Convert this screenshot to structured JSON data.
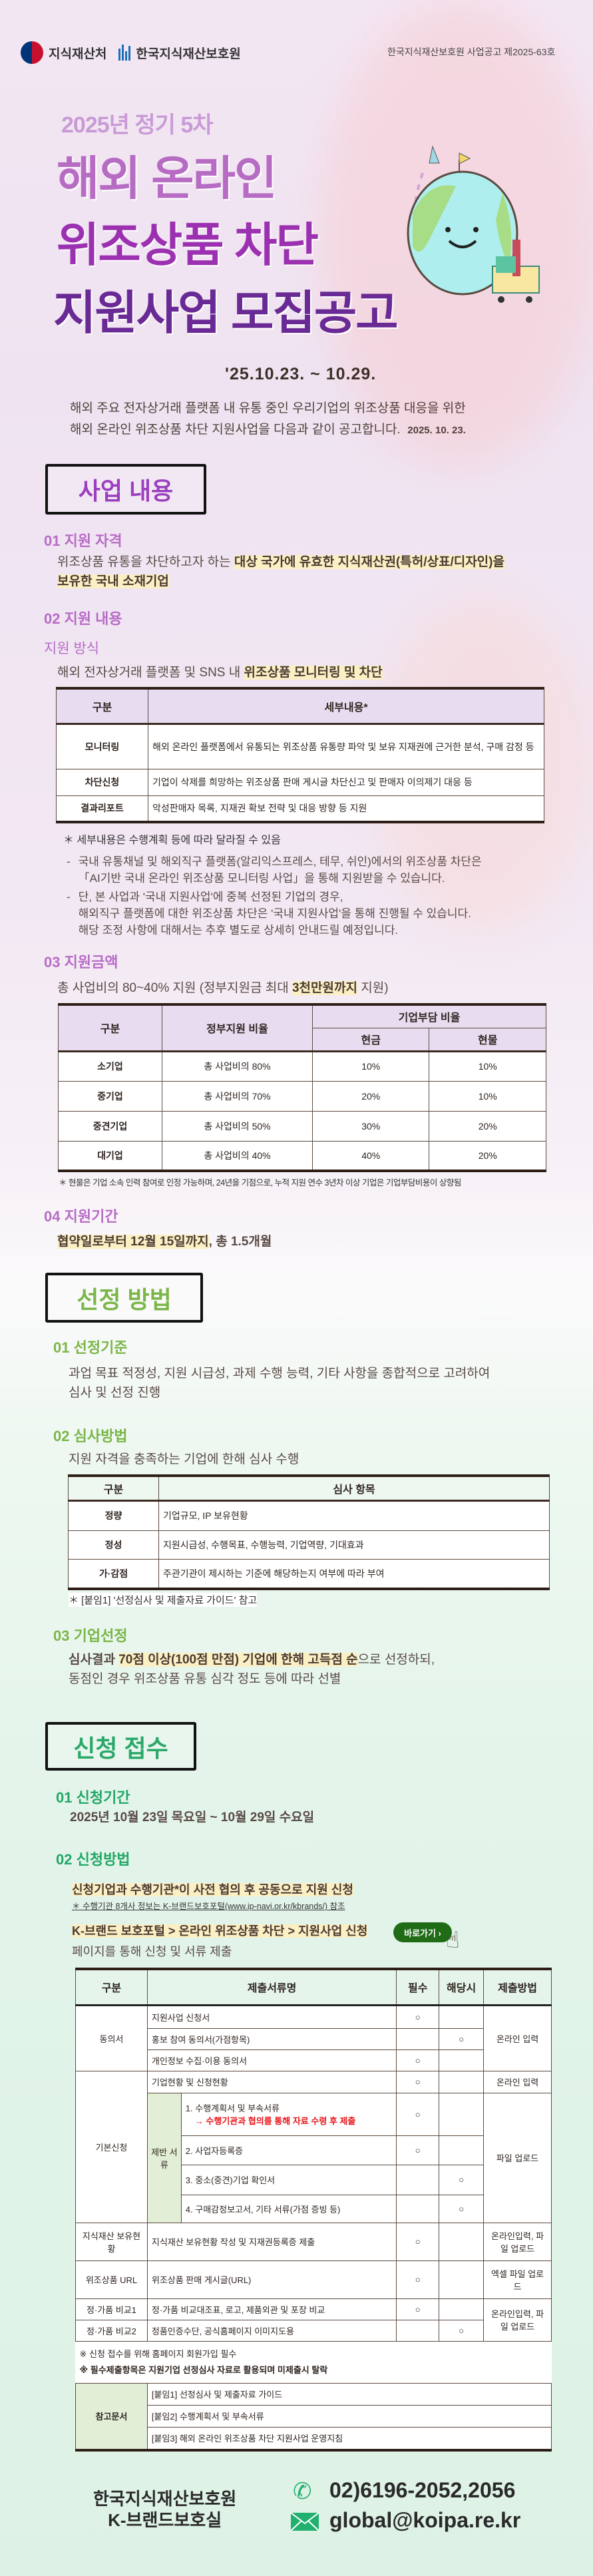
{
  "header": {
    "ministry": "지식재산처",
    "agency": "한국지식재산보호원",
    "notice_no": "한국지식재산보호원 사업공고 제2025-63호"
  },
  "hero": {
    "round": "2025년 정기 5차",
    "title_lines": [
      "해외 온라인",
      "위조상품 차단",
      "지원사업 모집공고"
    ],
    "period": "'25.10.23. ~ 10.29.",
    "intro_lines": [
      "해외 주요 전자상거래 플랫폼 내 유통 중인 우리기업의 위조상품 대응을 위한",
      "해외 온라인 위조상품 차단 지원사업을 다음과 같이 공고합니다."
    ],
    "date": "2025. 10. 23."
  },
  "colors": {
    "purple": "#b86cc7",
    "green": "#7ab648",
    "teal": "#22a866",
    "highlight": "#fbefc4"
  },
  "s1": {
    "tag": "사업 내용",
    "eligibility": {
      "heading": "01 지원 자격",
      "text_plain": "위조상품 유통을 차단하고자 하는 ",
      "text_hl1": "대상 국가에 유효한 지식재산권(특허/상표/디자인)을",
      "text_hl2": "보유한 국내 소재기업"
    },
    "content": {
      "heading": "02 지원 내용",
      "sub": "지원 방식",
      "text_plain": "해외 전자상거래 플랫폼 및 SNS 내 ",
      "text_hl": "위조상품 모니터링 및 차단",
      "table": {
        "headers": [
          "구분",
          "세부내용*"
        ],
        "rows": [
          [
            "모니터링",
            "해외 온라인 플랫폼에서 유통되는 위조상품 유통량 파악 및 보유 지재권에 근거한 분석, 구매 감정 등"
          ],
          [
            "차단신청",
            "기업이 삭제를 희망하는 위조상품 판매 게시글 차단신고 및 판매자 이의제기 대응 등"
          ],
          [
            "결과리포트",
            "악성판매자 목록, 지재권 확보 전략 및 대응 방향 등 지원"
          ]
        ]
      },
      "footnote": "＊ 세부내용은 수행계획 등에 따라 달라질 수 있음",
      "bullets": [
        [
          "국내 유통채널 및 해외직구 플랫폼(알리익스프레스, 테무, 쉬인)에서의 위조상품 차단은",
          "「AI기반 국내 온라인 위조상품 모니터링 사업」을 통해 지원받을 수 있습니다."
        ],
        [
          "단, 본 사업과 '국내 지원사업'에 중복 선정된 기업의 경우,",
          "해외직구 플랫폼에 대한 위조상품 차단은 '국내 지원사업'을 통해 진행될 수 있습니다.",
          "해당 조정 사항에 대해서는 추후 별도로 상세히 안내드릴 예정입니다."
        ]
      ]
    },
    "amount": {
      "heading": "03 지원금액",
      "text_plain": "총 사업비의 80~40% 지원 (정부지원금 최대 ",
      "text_hl": "3천만원까지",
      "text_end": " 지원)",
      "table": {
        "h_category": "구분",
        "h_gov": "정부지원 비율",
        "h_company": "기업부담 비율",
        "h_cash": "현금",
        "h_kind": "현물",
        "rows": [
          [
            "소기업",
            "총 사업비의 80%",
            "10%",
            "10%"
          ],
          [
            "중기업",
            "총 사업비의 70%",
            "20%",
            "10%"
          ],
          [
            "중견기업",
            "총 사업비의 50%",
            "30%",
            "20%"
          ],
          [
            "대기업",
            "총 사업비의 40%",
            "40%",
            "20%"
          ]
        ]
      },
      "footnote": "＊ 현물은 기업 소속 인력 참여로 인정 가능하며,  24년을 기점으로, 누적 지원 연수 3년차 이상 기업은 기업부담비용이 상향됨"
    },
    "period": {
      "heading": "04 지원기간",
      "text_hl": "협약일로부터 12월 15일까지",
      "text_end": ", 총 1.5개월"
    }
  },
  "s2": {
    "tag": "선정 방법",
    "criteria": {
      "heading": "01 선정기준",
      "lines": [
        "과업 목표 적정성, 지원 시급성, 과제 수행 능력, 기타 사항을 종합적으로 고려하여",
        "심사 및 선정 진행"
      ]
    },
    "review": {
      "heading": "02 심사방법",
      "text": "지원 자격을 충족하는 기업에 한해 심사 수행",
      "table": {
        "headers": [
          "구분",
          "심사 항목"
        ],
        "rows": [
          [
            "정량",
            "기업규모, IP 보유현황"
          ],
          [
            "정성",
            "지원시급성, 수행목표, 수행능력, 기업역량, 기대효과"
          ],
          [
            "가·감점",
            "주관기관이 제시하는 기준에 해당하는지 여부에 따라 부여"
          ]
        ]
      },
      "footnote": "＊ [붙임1] '선정심사 및 제출자료 가이드' 참고"
    },
    "selection": {
      "heading": "03 기업선정",
      "pre": "심사결과 ",
      "hl": "70점 이상(100점 만점) 기업에 한해 고득점 순",
      "post": "으로 선정하되,",
      "line2": "동점인 경우 위조상품 유통 심각 정도 등에 따라 선별"
    }
  },
  "s3": {
    "tag": "신청 접수",
    "period": {
      "heading": "01 신청기간",
      "text": "2025년 10월 23일 목요일 ~ 10월 29일 수요일"
    },
    "method": {
      "heading": "02 신청방법",
      "line1": "신청기업과 수행기관*이 사전 협의 후 공동으로 지원 신청",
      "note": "＊ 수행기관 8개사 정보는 K-브랜드보호포털(www.ip-navi.or.kr/kbrands/) 참조",
      "path": "K-브랜드 보호포털 > 온라인 위조상품 차단 > 지원사업 신청",
      "go_button": "바로가기 ›",
      "line3": "페이지를 통해 신청 및 서류 제출"
    },
    "docs": {
      "headers": [
        "구분",
        "제출서류명",
        "필수",
        "해당시",
        "제출방법"
      ],
      "mark": "○",
      "consent": {
        "label": "동의서",
        "items": [
          "지원사업 신청서",
          "홍보 참여 동의서(가점항목)",
          "개인정보 수집·이용 동의서"
        ],
        "method": "온라인 입력"
      },
      "basic": {
        "label": "기본신청",
        "status": "기업현황 및 신청현황",
        "status_method": "온라인 입력",
        "sub_label": "제반 서류",
        "item1": "1. 수행계획서 및 부속서류",
        "item1_note": "→ 수행기관과 협의를 통해 자료 수령 후 제출",
        "item2": "2. 사업자등록증",
        "item3": "3. 중소(중견)기업 확인서",
        "item4": "4. 구매감정보고서, 기타 서류(가점 증빙 등)",
        "method": "파일 업로드"
      },
      "ip": {
        "label": "지식재산 보유현황",
        "item": "지식재산 보유현황 작성 및 지재권등록증 제출",
        "method": "온라인입력, 파일 업로드"
      },
      "url": {
        "label": "위조상품 URL",
        "item": "위조상품 판매 게시글(URL)",
        "method": "엑셀 파일 업로드"
      },
      "cmp1": {
        "label": "정·가품 비교1",
        "item": "정·가품 비교대조표, 로고, 제품외관 및 포장 비교"
      },
      "cmp2": {
        "label": "정·가품 비교2",
        "item": "정품인증수단, 공식홈페이지 이미지도용"
      },
      "cmp_method": "온라인입력, 파일 업로드",
      "notes": [
        "※ 신청 접수를 위해 홈페이지 회원가입 필수",
        "※ 필수제출항목은 지원기업 선정심사 자료로 활용되며 미제출시 탈락"
      ],
      "refs": {
        "label": "참고문서",
        "items": [
          "[붙임1] 선정심사 및 제출자료 가이드",
          "[붙임2] 수행계획서 및 부속서류",
          "[붙임3] 해외 온라인 위조상품 차단 지원사업 운영지침"
        ]
      }
    }
  },
  "footer": {
    "org": "한국지식재산보호원",
    "dept": "K-브랜드보호실",
    "phone": "02)6196-2052,2056",
    "email": "global@koipa.re.kr"
  }
}
